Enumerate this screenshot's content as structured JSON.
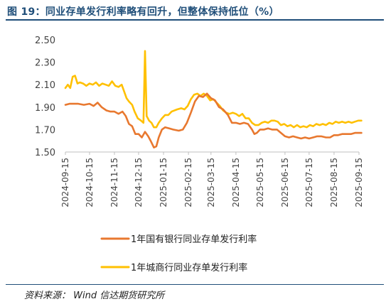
{
  "figure": {
    "title": "图 19：同业存单发行利率略有回升，但整体保持低位（%）",
    "source": "资料来源：  Wind  信达期货研究所"
  },
  "chart_data": {
    "type": "line",
    "title": "同业存单发行利率略有回升，但整体保持低位（%）",
    "xlabel": "",
    "ylabel": "",
    "ylim": [
      1.5,
      2.5
    ],
    "yticks": [
      1.5,
      1.7,
      1.9,
      2.1,
      2.3,
      2.5
    ],
    "ytick_labels": [
      "1.50",
      "1.70",
      "1.90",
      "2.10",
      "2.30",
      "2.50"
    ],
    "xlim": [
      "2024-09-15",
      "2025-09-15"
    ],
    "xticks": [
      "2024-09-15",
      "2024-10-15",
      "2024-11-15",
      "2024-12-15",
      "2025-01-15",
      "2025-02-15",
      "2025-03-15",
      "2025-04-15",
      "2025-05-15",
      "2025-06-15",
      "2025-07-15",
      "2025-08-15",
      "2025-09-15"
    ],
    "grid": false,
    "legend_position": "bottom",
    "series": [
      {
        "name": "1年国有银行同业存单发行利率",
        "color": "#E8782F",
        "points": [
          [
            "2024-09-15",
            1.92
          ],
          [
            "2024-09-20",
            1.93
          ],
          [
            "2024-09-25",
            1.93
          ],
          [
            "2024-10-01",
            1.93
          ],
          [
            "2024-10-08",
            1.92
          ],
          [
            "2024-10-15",
            1.93
          ],
          [
            "2024-10-20",
            1.91
          ],
          [
            "2024-10-25",
            1.94
          ],
          [
            "2024-10-30",
            1.9
          ],
          [
            "2024-11-05",
            1.87
          ],
          [
            "2024-11-10",
            1.86
          ],
          [
            "2024-11-15",
            1.86
          ],
          [
            "2024-11-20",
            1.84
          ],
          [
            "2024-11-25",
            1.86
          ],
          [
            "2024-11-29",
            1.82
          ],
          [
            "2024-12-03",
            1.75
          ],
          [
            "2024-12-07",
            1.73
          ],
          [
            "2024-12-11",
            1.66
          ],
          [
            "2024-12-15",
            1.66
          ],
          [
            "2024-12-19",
            1.63
          ],
          [
            "2024-12-23",
            1.68
          ],
          [
            "2024-12-27",
            1.64
          ],
          [
            "2024-12-30",
            1.6
          ],
          [
            "2025-01-03",
            1.54
          ],
          [
            "2025-01-06",
            1.55
          ],
          [
            "2025-01-09",
            1.63
          ],
          [
            "2025-01-13",
            1.7
          ],
          [
            "2025-01-17",
            1.72
          ],
          [
            "2025-01-22",
            1.71
          ],
          [
            "2025-01-27",
            1.7
          ],
          [
            "2025-02-03",
            1.69
          ],
          [
            "2025-02-08",
            1.7
          ],
          [
            "2025-02-13",
            1.76
          ],
          [
            "2025-02-18",
            1.85
          ],
          [
            "2025-02-23",
            1.95
          ],
          [
            "2025-02-28",
            2.0
          ],
          [
            "2025-03-05",
            1.99
          ],
          [
            "2025-03-10",
            2.02
          ],
          [
            "2025-03-15",
            1.98
          ],
          [
            "2025-03-20",
            1.96
          ],
          [
            "2025-03-25",
            1.9
          ],
          [
            "2025-03-30",
            1.88
          ],
          [
            "2025-04-05",
            1.83
          ],
          [
            "2025-04-10",
            1.76
          ],
          [
            "2025-04-15",
            1.76
          ],
          [
            "2025-04-20",
            1.75
          ],
          [
            "2025-04-25",
            1.76
          ],
          [
            "2025-04-30",
            1.75
          ],
          [
            "2025-05-05",
            1.7
          ],
          [
            "2025-05-08",
            1.66
          ],
          [
            "2025-05-11",
            1.67
          ],
          [
            "2025-05-15",
            1.7
          ],
          [
            "2025-05-20",
            1.7
          ],
          [
            "2025-05-25",
            1.71
          ],
          [
            "2025-05-30",
            1.7
          ],
          [
            "2025-06-05",
            1.7
          ],
          [
            "2025-06-10",
            1.67
          ],
          [
            "2025-06-15",
            1.64
          ],
          [
            "2025-06-20",
            1.63
          ],
          [
            "2025-06-25",
            1.64
          ],
          [
            "2025-06-30",
            1.63
          ],
          [
            "2025-07-05",
            1.62
          ],
          [
            "2025-07-10",
            1.63
          ],
          [
            "2025-07-15",
            1.62
          ],
          [
            "2025-07-20",
            1.63
          ],
          [
            "2025-07-25",
            1.64
          ],
          [
            "2025-07-30",
            1.64
          ],
          [
            "2025-08-05",
            1.63
          ],
          [
            "2025-08-10",
            1.63
          ],
          [
            "2025-08-15",
            1.65
          ],
          [
            "2025-08-20",
            1.65
          ],
          [
            "2025-08-25",
            1.66
          ],
          [
            "2025-08-30",
            1.66
          ],
          [
            "2025-09-05",
            1.66
          ],
          [
            "2025-09-10",
            1.67
          ],
          [
            "2025-09-15",
            1.67
          ],
          [
            "2025-09-18",
            1.67
          ]
        ]
      },
      {
        "name": "1年城商行同业存单发行利率",
        "color": "#FFC000",
        "points": [
          [
            "2024-09-15",
            2.07
          ],
          [
            "2024-09-18",
            2.1
          ],
          [
            "2024-09-21",
            2.07
          ],
          [
            "2024-09-24",
            2.17
          ],
          [
            "2024-09-27",
            2.18
          ],
          [
            "2024-09-30",
            2.11
          ],
          [
            "2024-10-03",
            2.12
          ],
          [
            "2024-10-07",
            2.11
          ],
          [
            "2024-10-11",
            2.09
          ],
          [
            "2024-10-15",
            2.11
          ],
          [
            "2024-10-19",
            2.1
          ],
          [
            "2024-10-23",
            2.12
          ],
          [
            "2024-10-27",
            2.09
          ],
          [
            "2024-10-31",
            2.11
          ],
          [
            "2024-11-04",
            2.1
          ],
          [
            "2024-11-08",
            2.09
          ],
          [
            "2024-11-12",
            2.13
          ],
          [
            "2024-11-16",
            2.09
          ],
          [
            "2024-11-20",
            2.08
          ],
          [
            "2024-11-24",
            2.1
          ],
          [
            "2024-11-27",
            2.04
          ],
          [
            "2024-11-30",
            1.98
          ],
          [
            "2024-12-03",
            1.95
          ],
          [
            "2024-12-07",
            1.92
          ],
          [
            "2024-12-10",
            1.86
          ],
          [
            "2024-12-14",
            1.8
          ],
          [
            "2024-12-18",
            1.78
          ],
          [
            "2024-12-21",
            1.76
          ],
          [
            "2024-12-23",
            2.4
          ],
          [
            "2024-12-25",
            1.82
          ],
          [
            "2024-12-28",
            1.78
          ],
          [
            "2024-12-31",
            1.76
          ],
          [
            "2025-01-03",
            1.72
          ],
          [
            "2025-01-06",
            1.72
          ],
          [
            "2025-01-09",
            1.76
          ],
          [
            "2025-01-13",
            1.8
          ],
          [
            "2025-01-17",
            1.83
          ],
          [
            "2025-01-21",
            1.83
          ],
          [
            "2025-01-25",
            1.86
          ],
          [
            "2025-02-01",
            1.88
          ],
          [
            "2025-02-06",
            1.89
          ],
          [
            "2025-02-10",
            1.88
          ],
          [
            "2025-02-14",
            1.91
          ],
          [
            "2025-02-18",
            1.97
          ],
          [
            "2025-02-22",
            2.01
          ],
          [
            "2025-02-26",
            2.02
          ],
          [
            "2025-03-02",
            2.0
          ],
          [
            "2025-03-06",
            2.02
          ],
          [
            "2025-03-10",
            2.0
          ],
          [
            "2025-03-14",
            1.96
          ],
          [
            "2025-03-18",
            1.97
          ],
          [
            "2025-03-22",
            1.94
          ],
          [
            "2025-03-26",
            1.91
          ],
          [
            "2025-03-30",
            1.87
          ],
          [
            "2025-04-03",
            1.85
          ],
          [
            "2025-04-07",
            1.84
          ],
          [
            "2025-04-11",
            1.85
          ],
          [
            "2025-04-15",
            1.84
          ],
          [
            "2025-04-19",
            1.82
          ],
          [
            "2025-04-23",
            1.84
          ],
          [
            "2025-04-27",
            1.8
          ],
          [
            "2025-05-01",
            1.8
          ],
          [
            "2025-05-05",
            1.76
          ],
          [
            "2025-05-09",
            1.74
          ],
          [
            "2025-05-13",
            1.74
          ],
          [
            "2025-05-17",
            1.76
          ],
          [
            "2025-05-21",
            1.77
          ],
          [
            "2025-05-25",
            1.76
          ],
          [
            "2025-05-29",
            1.78
          ],
          [
            "2025-06-02",
            1.78
          ],
          [
            "2025-06-06",
            1.77
          ],
          [
            "2025-06-10",
            1.74
          ],
          [
            "2025-06-14",
            1.75
          ],
          [
            "2025-06-18",
            1.73
          ],
          [
            "2025-06-22",
            1.74
          ],
          [
            "2025-06-26",
            1.72
          ],
          [
            "2025-06-30",
            1.74
          ],
          [
            "2025-07-04",
            1.72
          ],
          [
            "2025-07-08",
            1.73
          ],
          [
            "2025-07-12",
            1.72
          ],
          [
            "2025-07-16",
            1.74
          ],
          [
            "2025-07-20",
            1.73
          ],
          [
            "2025-07-24",
            1.75
          ],
          [
            "2025-07-28",
            1.74
          ],
          [
            "2025-08-01",
            1.75
          ],
          [
            "2025-08-05",
            1.74
          ],
          [
            "2025-08-09",
            1.76
          ],
          [
            "2025-08-13",
            1.75
          ],
          [
            "2025-08-17",
            1.77
          ],
          [
            "2025-08-21",
            1.76
          ],
          [
            "2025-08-25",
            1.77
          ],
          [
            "2025-08-29",
            1.76
          ],
          [
            "2025-09-02",
            1.77
          ],
          [
            "2025-09-06",
            1.76
          ],
          [
            "2025-09-10",
            1.77
          ],
          [
            "2025-09-14",
            1.78
          ],
          [
            "2025-09-18",
            1.78
          ]
        ]
      }
    ]
  }
}
